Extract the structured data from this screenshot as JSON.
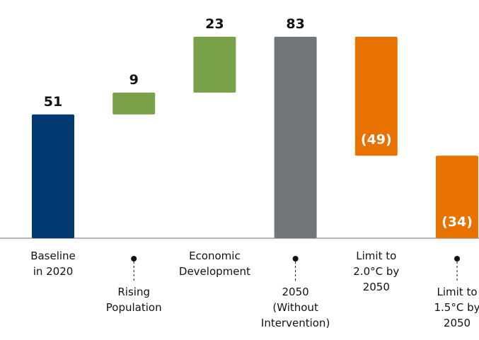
{
  "chart_data": {
    "type": "waterfall",
    "categories": [
      "Baseline in 2020",
      "Rising Population",
      "Economic Development",
      "2050 (Without Intervention)",
      "Limit to 2.0°C by 2050",
      "Limit to 1.5°C by 2050"
    ],
    "values": [
      51,
      9,
      23,
      83,
      -49,
      -34
    ],
    "value_labels": [
      "51",
      "9",
      "23",
      "83",
      "(49)",
      "(34)"
    ],
    "colors": [
      "#003a70",
      "#78a14a",
      "#78a14a",
      "#72757a",
      "#e87200",
      "#e87200"
    ]
  }
}
